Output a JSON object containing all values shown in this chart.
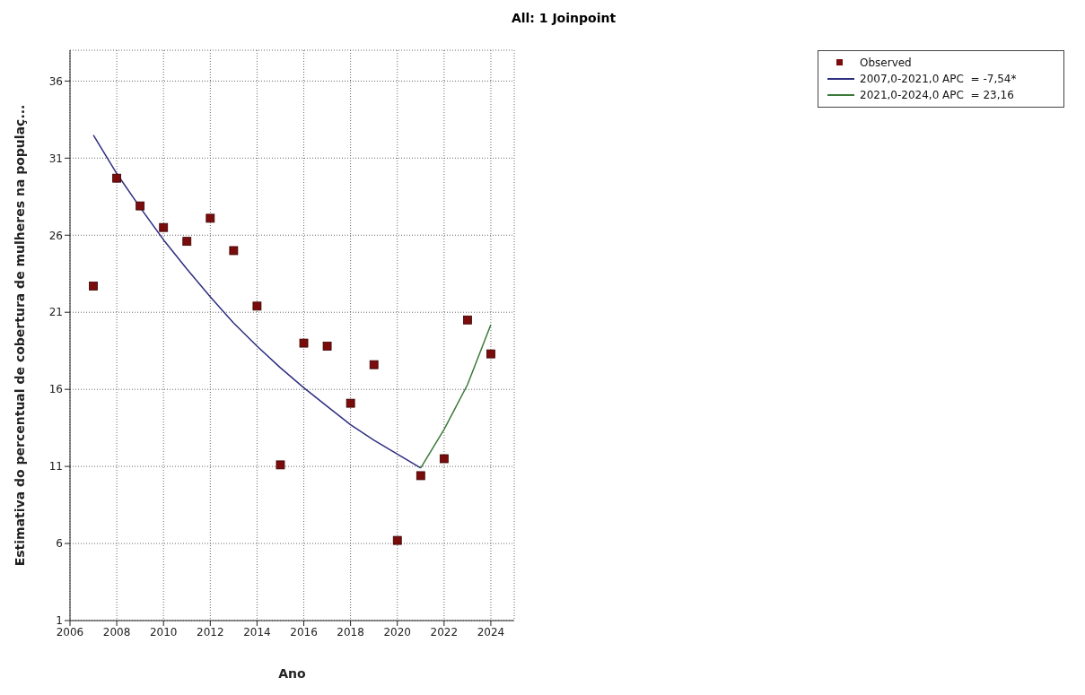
{
  "chart_data": {
    "type": "scatter",
    "title": "All: 1 Joinpoint",
    "xlabel": "Ano",
    "ylabel": "Estimativa do percentual de cobertura de mulheres na populaç...",
    "xlim": [
      2006,
      2025
    ],
    "xticks": [
      2006,
      2008,
      2010,
      2012,
      2014,
      2016,
      2018,
      2020,
      2022,
      2024
    ],
    "ylim": [
      1,
      38
    ],
    "yticks": [
      1,
      6,
      11,
      16,
      21,
      26,
      31,
      36
    ],
    "grid": true,
    "legend": "top right",
    "series": [
      {
        "name": "Observed",
        "marker": "square",
        "color": "#7a0c0c",
        "x": [
          2007,
          2008,
          2009,
          2010,
          2011,
          2012,
          2013,
          2014,
          2015,
          2016,
          2017,
          2018,
          2019,
          2020,
          2021,
          2022,
          2023,
          2024
        ],
        "values": [
          22.7,
          29.7,
          27.9,
          26.5,
          25.6,
          27.1,
          25.0,
          21.4,
          11.1,
          19.0,
          18.8,
          15.1,
          17.6,
          6.2,
          10.4,
          11.5,
          20.5,
          18.3
        ]
      },
      {
        "name": "2007,0-2021,0 APC  = -7,54*",
        "type": "line",
        "marker": "none",
        "line_style": "solid",
        "color": "#2e2e80",
        "x": [
          2007,
          2008,
          2009,
          2010,
          2011,
          2012,
          2013,
          2014,
          2015,
          2016,
          2017,
          2018,
          2019,
          2020,
          2021
        ],
        "values": [
          32.5,
          30.0,
          27.8,
          25.7,
          23.8,
          22.0,
          20.3,
          18.8,
          17.4,
          16.1,
          14.9,
          13.7,
          12.7,
          11.8,
          10.9
        ]
      },
      {
        "name": "2021,0-2024,0 APC  = 23,16",
        "type": "line",
        "marker": "none",
        "line_style": "solid",
        "color": "#3a7a3a",
        "x": [
          2021,
          2022,
          2023,
          2024
        ],
        "values": [
          10.9,
          13.4,
          16.3,
          20.2
        ]
      }
    ]
  }
}
